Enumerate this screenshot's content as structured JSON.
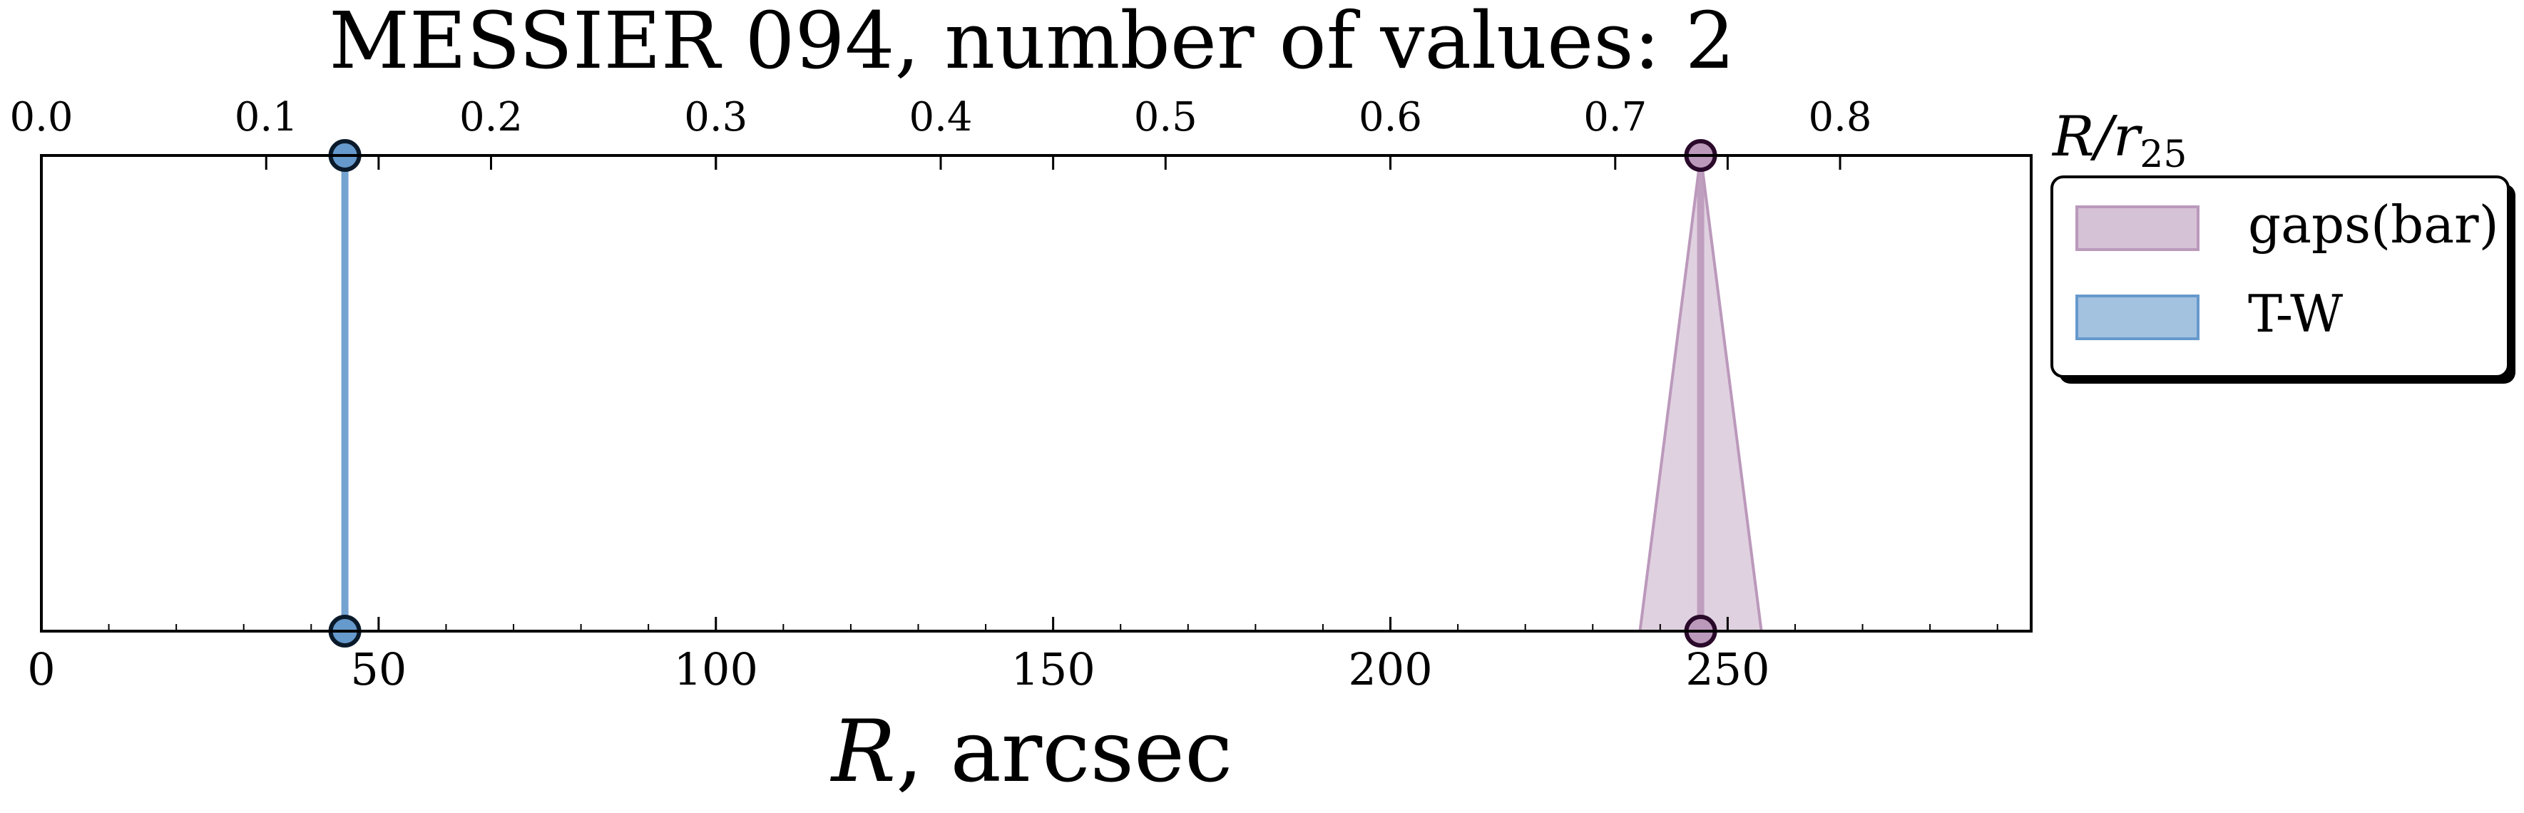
{
  "chart_data": {
    "type": "scatter",
    "title": "MESSIER 094, number of values: 2",
    "xlabel_main": "R",
    "xlabel_rest": ", arcsec",
    "xlim": [
      0,
      295
    ],
    "xticks": [
      "0",
      "50",
      "100",
      "150",
      "200",
      "250"
    ],
    "top_axis": {
      "label_main": "R/r",
      "label_sub": "25",
      "scale_per_unit": 0.003,
      "ticks": [
        "0.0",
        "0.1",
        "0.2",
        "0.3",
        "0.4",
        "0.5",
        "0.6",
        "0.7",
        "0.8"
      ]
    },
    "legend_position": "right",
    "series": [
      {
        "name": "gaps(bar)",
        "color": "#bb99bb",
        "edge_color": "#2a0a2a",
        "x": 246,
        "band": [
          237,
          255
        ],
        "style": "band"
      },
      {
        "name": "T-W",
        "color": "#6699cc",
        "edge_color": "#0a1a2a",
        "x": 45,
        "band": [
          45,
          45
        ],
        "style": "line"
      }
    ]
  }
}
